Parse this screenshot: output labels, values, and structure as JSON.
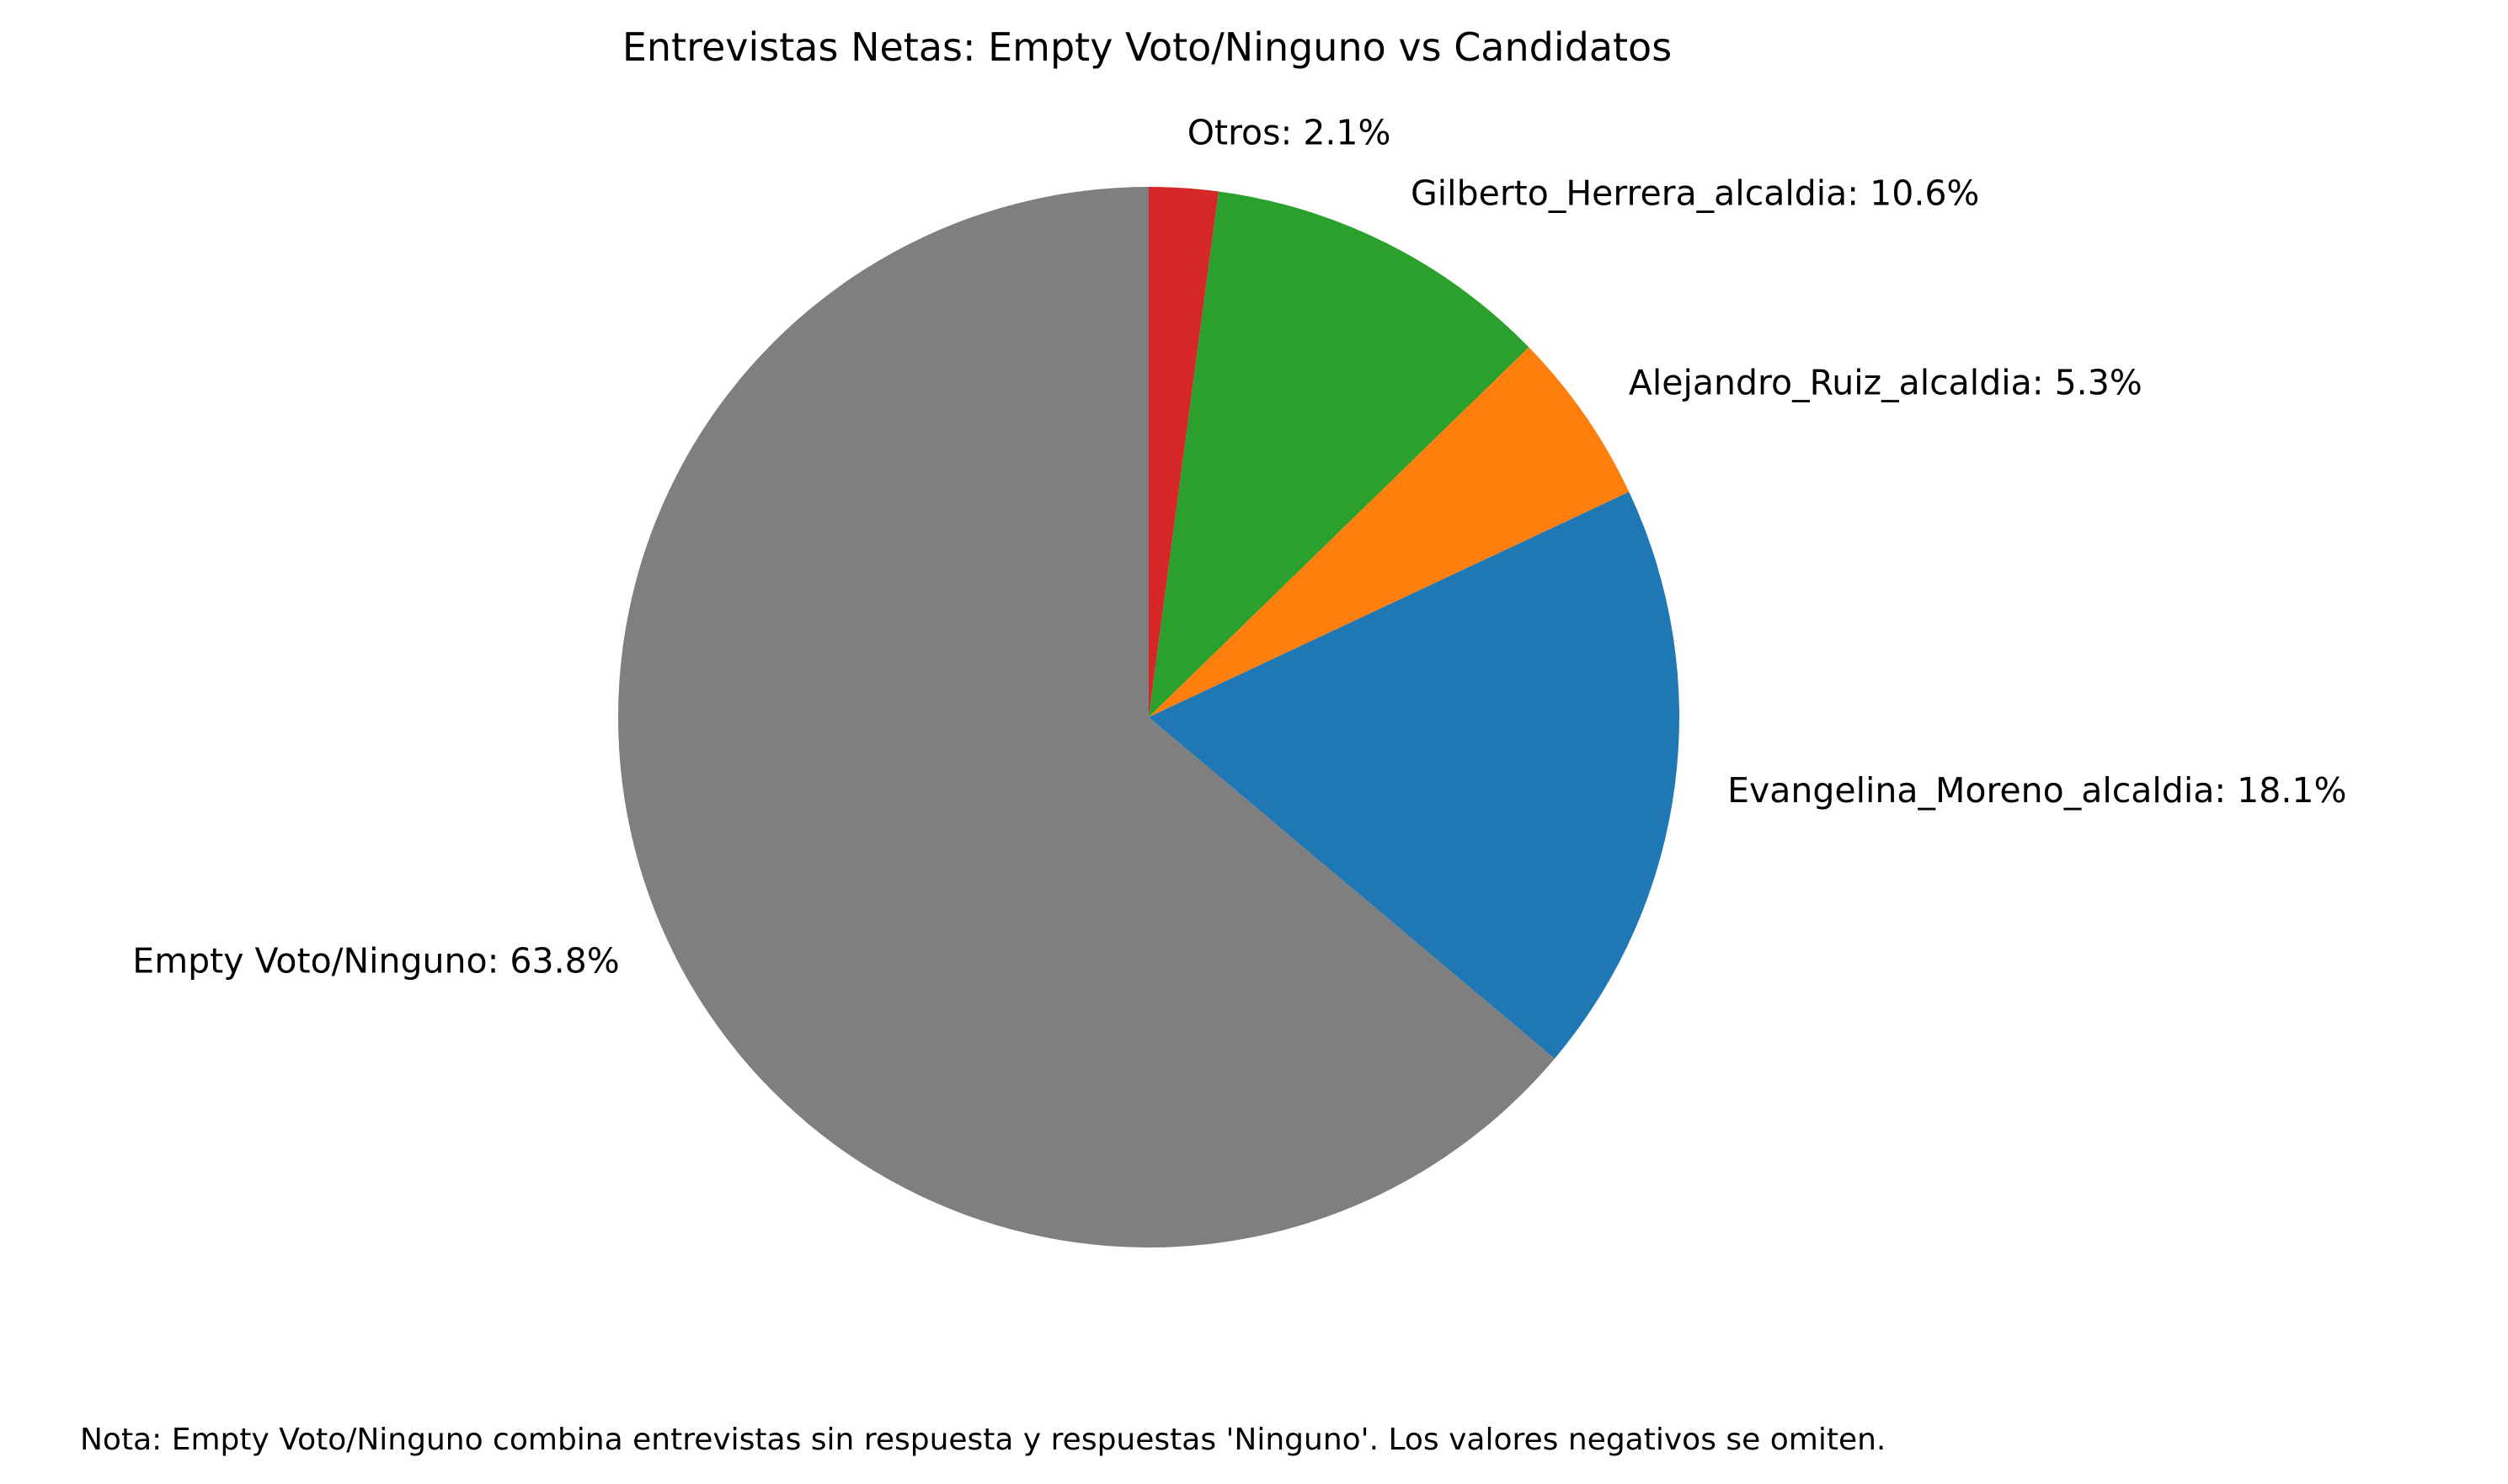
{
  "chart_data": {
    "type": "pie",
    "title": "Entrevistas Netas: Empty Voto/Ninguno vs Candidatos",
    "start_angle_deg": 90,
    "direction": "clockwise",
    "slices": [
      {
        "label": "Otros",
        "value": 2.1,
        "display": "Otros: 2.1%",
        "color": "#d62728"
      },
      {
        "label": "Gilberto_Herrera_alcaldia",
        "value": 10.6,
        "display": "Gilberto_Herrera_alcaldia: 10.6%",
        "color": "#2ca02c"
      },
      {
        "label": "Alejandro_Ruiz_alcaldia",
        "value": 5.3,
        "display": "Alejandro_Ruiz_alcaldia: 5.3%",
        "color": "#ff7f0e"
      },
      {
        "label": "Evangelina_Moreno_alcaldia",
        "value": 18.1,
        "display": "Evangelina_Moreno_alcaldia: 18.1%",
        "color": "#1f77b4"
      },
      {
        "label": "Empty Voto/Ninguno",
        "value": 63.8,
        "display": "Empty Voto/Ninguno: 63.8%",
        "color": "#7f7f7f"
      }
    ],
    "note": "Nota: Empty Voto/Ninguno combina entrevistas sin respuesta y respuestas 'Ninguno'. Los valores negativos se omiten."
  }
}
